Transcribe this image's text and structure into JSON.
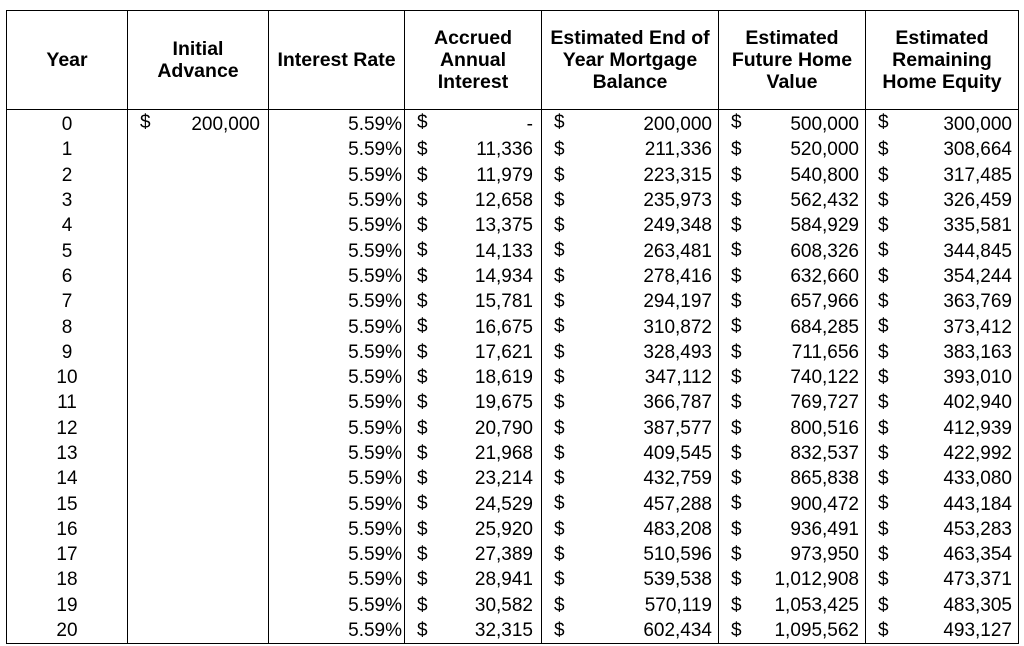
{
  "table": {
    "headers": [
      "Year",
      "Initial\nAdvance",
      "Interest Rate",
      "Accrued\nAnnual\nInterest",
      "Estimated End of\nYear Mortgage\nBalance",
      "Estimated\nFuture Home\nValue",
      "Estimated\nRemaining\nHome Equity"
    ],
    "currency_symbol": "$",
    "rows": [
      {
        "year": "0",
        "advance": "200,000",
        "rate": "5.59%",
        "interest": "-",
        "balance": "200,000",
        "home_value": "500,000",
        "equity": "300,000"
      },
      {
        "year": "1",
        "advance": "",
        "rate": "5.59%",
        "interest": "11,336",
        "balance": "211,336",
        "home_value": "520,000",
        "equity": "308,664"
      },
      {
        "year": "2",
        "advance": "",
        "rate": "5.59%",
        "interest": "11,979",
        "balance": "223,315",
        "home_value": "540,800",
        "equity": "317,485"
      },
      {
        "year": "3",
        "advance": "",
        "rate": "5.59%",
        "interest": "12,658",
        "balance": "235,973",
        "home_value": "562,432",
        "equity": "326,459"
      },
      {
        "year": "4",
        "advance": "",
        "rate": "5.59%",
        "interest": "13,375",
        "balance": "249,348",
        "home_value": "584,929",
        "equity": "335,581"
      },
      {
        "year": "5",
        "advance": "",
        "rate": "5.59%",
        "interest": "14,133",
        "balance": "263,481",
        "home_value": "608,326",
        "equity": "344,845"
      },
      {
        "year": "6",
        "advance": "",
        "rate": "5.59%",
        "interest": "14,934",
        "balance": "278,416",
        "home_value": "632,660",
        "equity": "354,244"
      },
      {
        "year": "7",
        "advance": "",
        "rate": "5.59%",
        "interest": "15,781",
        "balance": "294,197",
        "home_value": "657,966",
        "equity": "363,769"
      },
      {
        "year": "8",
        "advance": "",
        "rate": "5.59%",
        "interest": "16,675",
        "balance": "310,872",
        "home_value": "684,285",
        "equity": "373,412"
      },
      {
        "year": "9",
        "advance": "",
        "rate": "5.59%",
        "interest": "17,621",
        "balance": "328,493",
        "home_value": "711,656",
        "equity": "383,163"
      },
      {
        "year": "10",
        "advance": "",
        "rate": "5.59%",
        "interest": "18,619",
        "balance": "347,112",
        "home_value": "740,122",
        "equity": "393,010"
      },
      {
        "year": "11",
        "advance": "",
        "rate": "5.59%",
        "interest": "19,675",
        "balance": "366,787",
        "home_value": "769,727",
        "equity": "402,940"
      },
      {
        "year": "12",
        "advance": "",
        "rate": "5.59%",
        "interest": "20,790",
        "balance": "387,577",
        "home_value": "800,516",
        "equity": "412,939"
      },
      {
        "year": "13",
        "advance": "",
        "rate": "5.59%",
        "interest": "21,968",
        "balance": "409,545",
        "home_value": "832,537",
        "equity": "422,992"
      },
      {
        "year": "14",
        "advance": "",
        "rate": "5.59%",
        "interest": "23,214",
        "balance": "432,759",
        "home_value": "865,838",
        "equity": "433,080"
      },
      {
        "year": "15",
        "advance": "",
        "rate": "5.59%",
        "interest": "24,529",
        "balance": "457,288",
        "home_value": "900,472",
        "equity": "443,184"
      },
      {
        "year": "16",
        "advance": "",
        "rate": "5.59%",
        "interest": "25,920",
        "balance": "483,208",
        "home_value": "936,491",
        "equity": "453,283"
      },
      {
        "year": "17",
        "advance": "",
        "rate": "5.59%",
        "interest": "27,389",
        "balance": "510,596",
        "home_value": "973,950",
        "equity": "463,354"
      },
      {
        "year": "18",
        "advance": "",
        "rate": "5.59%",
        "interest": "28,941",
        "balance": "539,538",
        "home_value": "1,012,908",
        "equity": "473,371"
      },
      {
        "year": "19",
        "advance": "",
        "rate": "5.59%",
        "interest": "30,582",
        "balance": "570,119",
        "home_value": "1,053,425",
        "equity": "483,305"
      },
      {
        "year": "20",
        "advance": "",
        "rate": "5.59%",
        "interest": "32,315",
        "balance": "602,434",
        "home_value": "1,095,562",
        "equity": "493,127"
      }
    ]
  }
}
